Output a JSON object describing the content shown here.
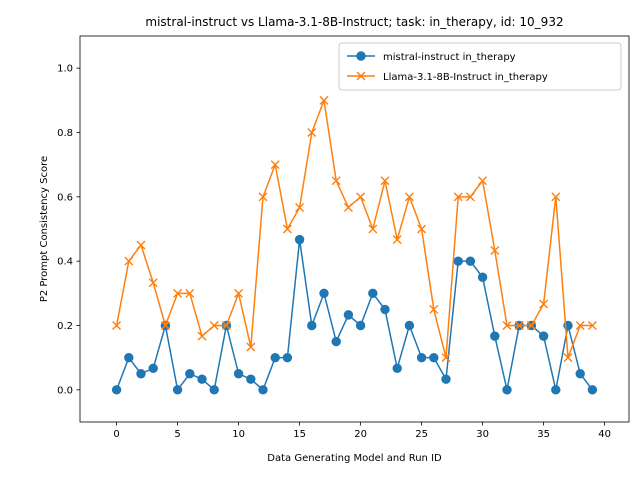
{
  "chart_data": {
    "type": "line",
    "title": "mistral-instruct vs Llama-3.1-8B-Instruct; task: in_therapy, id: 10_932",
    "xlabel": "Data Generating Model and Run ID",
    "ylabel": "P2 Prompt Consistency Score",
    "xlim": [
      -3,
      42
    ],
    "ylim": [
      -0.1,
      1.1
    ],
    "xticks": [
      0,
      5,
      10,
      15,
      20,
      25,
      30,
      35,
      40
    ],
    "xtick_labels": [
      "0",
      "5",
      "10",
      "15",
      "20",
      "25",
      "30",
      "35",
      "40"
    ],
    "yticks": [
      0.0,
      0.2,
      0.4,
      0.6,
      0.8,
      1.0
    ],
    "ytick_labels": [
      "0.0",
      "0.2",
      "0.4",
      "0.6",
      "0.8",
      "1.0"
    ],
    "grid": false,
    "legend_position": "top-right",
    "x": [
      0,
      1,
      2,
      3,
      4,
      5,
      6,
      7,
      8,
      9,
      10,
      11,
      12,
      13,
      14,
      15,
      16,
      17,
      18,
      19,
      20,
      21,
      22,
      23,
      24,
      25,
      26,
      27,
      28,
      29,
      30,
      31,
      32,
      33,
      34,
      35,
      36,
      37,
      38,
      39
    ],
    "series": [
      {
        "name": "mistral-instruct in_therapy",
        "color": "#1f77b4",
        "marker": "circle",
        "values": [
          0.0,
          0.1,
          0.05,
          0.067,
          0.2,
          0.0,
          0.05,
          0.033,
          0.0,
          0.2,
          0.05,
          0.033,
          0.0,
          0.1,
          0.1,
          0.467,
          0.2,
          0.3,
          0.15,
          0.233,
          0.2,
          0.3,
          0.25,
          0.067,
          0.2,
          0.1,
          0.1,
          0.033,
          0.4,
          0.4,
          0.35,
          0.167,
          0.0,
          0.2,
          0.2,
          0.167,
          0.0,
          0.2,
          0.05,
          0.0
        ]
      },
      {
        "name": "Llama-3.1-8B-Instruct in_therapy",
        "color": "#ff7f0e",
        "marker": "x",
        "values": [
          0.2,
          0.4,
          0.45,
          0.333,
          0.2,
          0.3,
          0.3,
          0.167,
          0.2,
          0.2,
          0.3,
          0.133,
          0.6,
          0.7,
          0.5,
          0.567,
          0.8,
          0.9,
          0.65,
          0.567,
          0.6,
          0.5,
          0.65,
          0.467,
          0.6,
          0.5,
          0.25,
          0.1,
          0.6,
          0.6,
          0.65,
          0.433,
          0.2,
          0.2,
          0.2,
          0.267,
          0.6,
          0.1,
          0.2,
          0.2
        ]
      }
    ]
  }
}
